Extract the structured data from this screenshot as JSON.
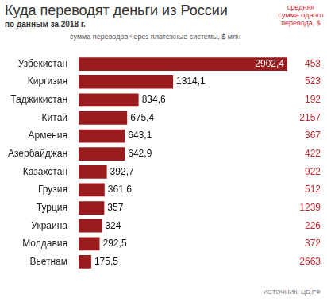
{
  "chart_data": {
    "type": "bar",
    "title": "Куда переводят деньги из России",
    "subtitle": "по данным за 2018 г.",
    "x_label": "сумма переводов через платежные системы, $ млн",
    "orientation": "horizontal",
    "categories": [
      "Узбекистан",
      "Киргизия",
      "Таджикистан",
      "Китай",
      "Армения",
      "Азербайджан",
      "Казахстан",
      "Грузия",
      "Турция",
      "Украина",
      "Молдавия",
      "Вьетнам"
    ],
    "values": [
      2902.4,
      1314.1,
      834.6,
      675.4,
      643.1,
      642.9,
      392.7,
      361.6,
      357,
      324,
      292.5,
      175.5
    ],
    "value_labels": [
      "2902,4",
      "1314,1",
      "834,6",
      "675,4",
      "643,1",
      "642,9",
      "392,7",
      "361,6",
      "357",
      "324",
      "292,5",
      "175,5"
    ],
    "color": "#9b1c1f",
    "data_labels": true,
    "xlim": [
      0,
      2902.4
    ],
    "grid": false,
    "tick_labels": "y",
    "average_transfer": {
      "title": "средняя сумма одного перевода, $",
      "values": [
        453,
        523,
        192,
        2157,
        367,
        422,
        922,
        512,
        1239,
        226,
        372,
        2663
      ],
      "color": "#c0282d"
    },
    "source": "ИСТОЧНИК: ЦБ.РФ"
  }
}
